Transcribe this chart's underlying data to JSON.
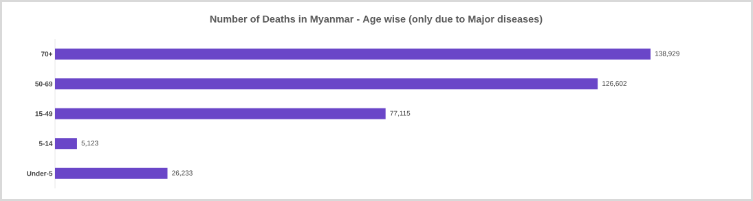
{
  "chart_data": {
    "type": "bar",
    "orientation": "horizontal",
    "title": "Number of Deaths in Myanmar - Age wise (only due to Major diseases)",
    "categories": [
      "70+",
      "50-69",
      "15-49",
      "5-14",
      "Under-5"
    ],
    "values": [
      138929,
      126602,
      77115,
      5123,
      26233
    ],
    "value_labels": [
      "138,929",
      "126,602",
      "77,115",
      "5,123",
      "26,233"
    ],
    "color": "#6a46c8"
  }
}
